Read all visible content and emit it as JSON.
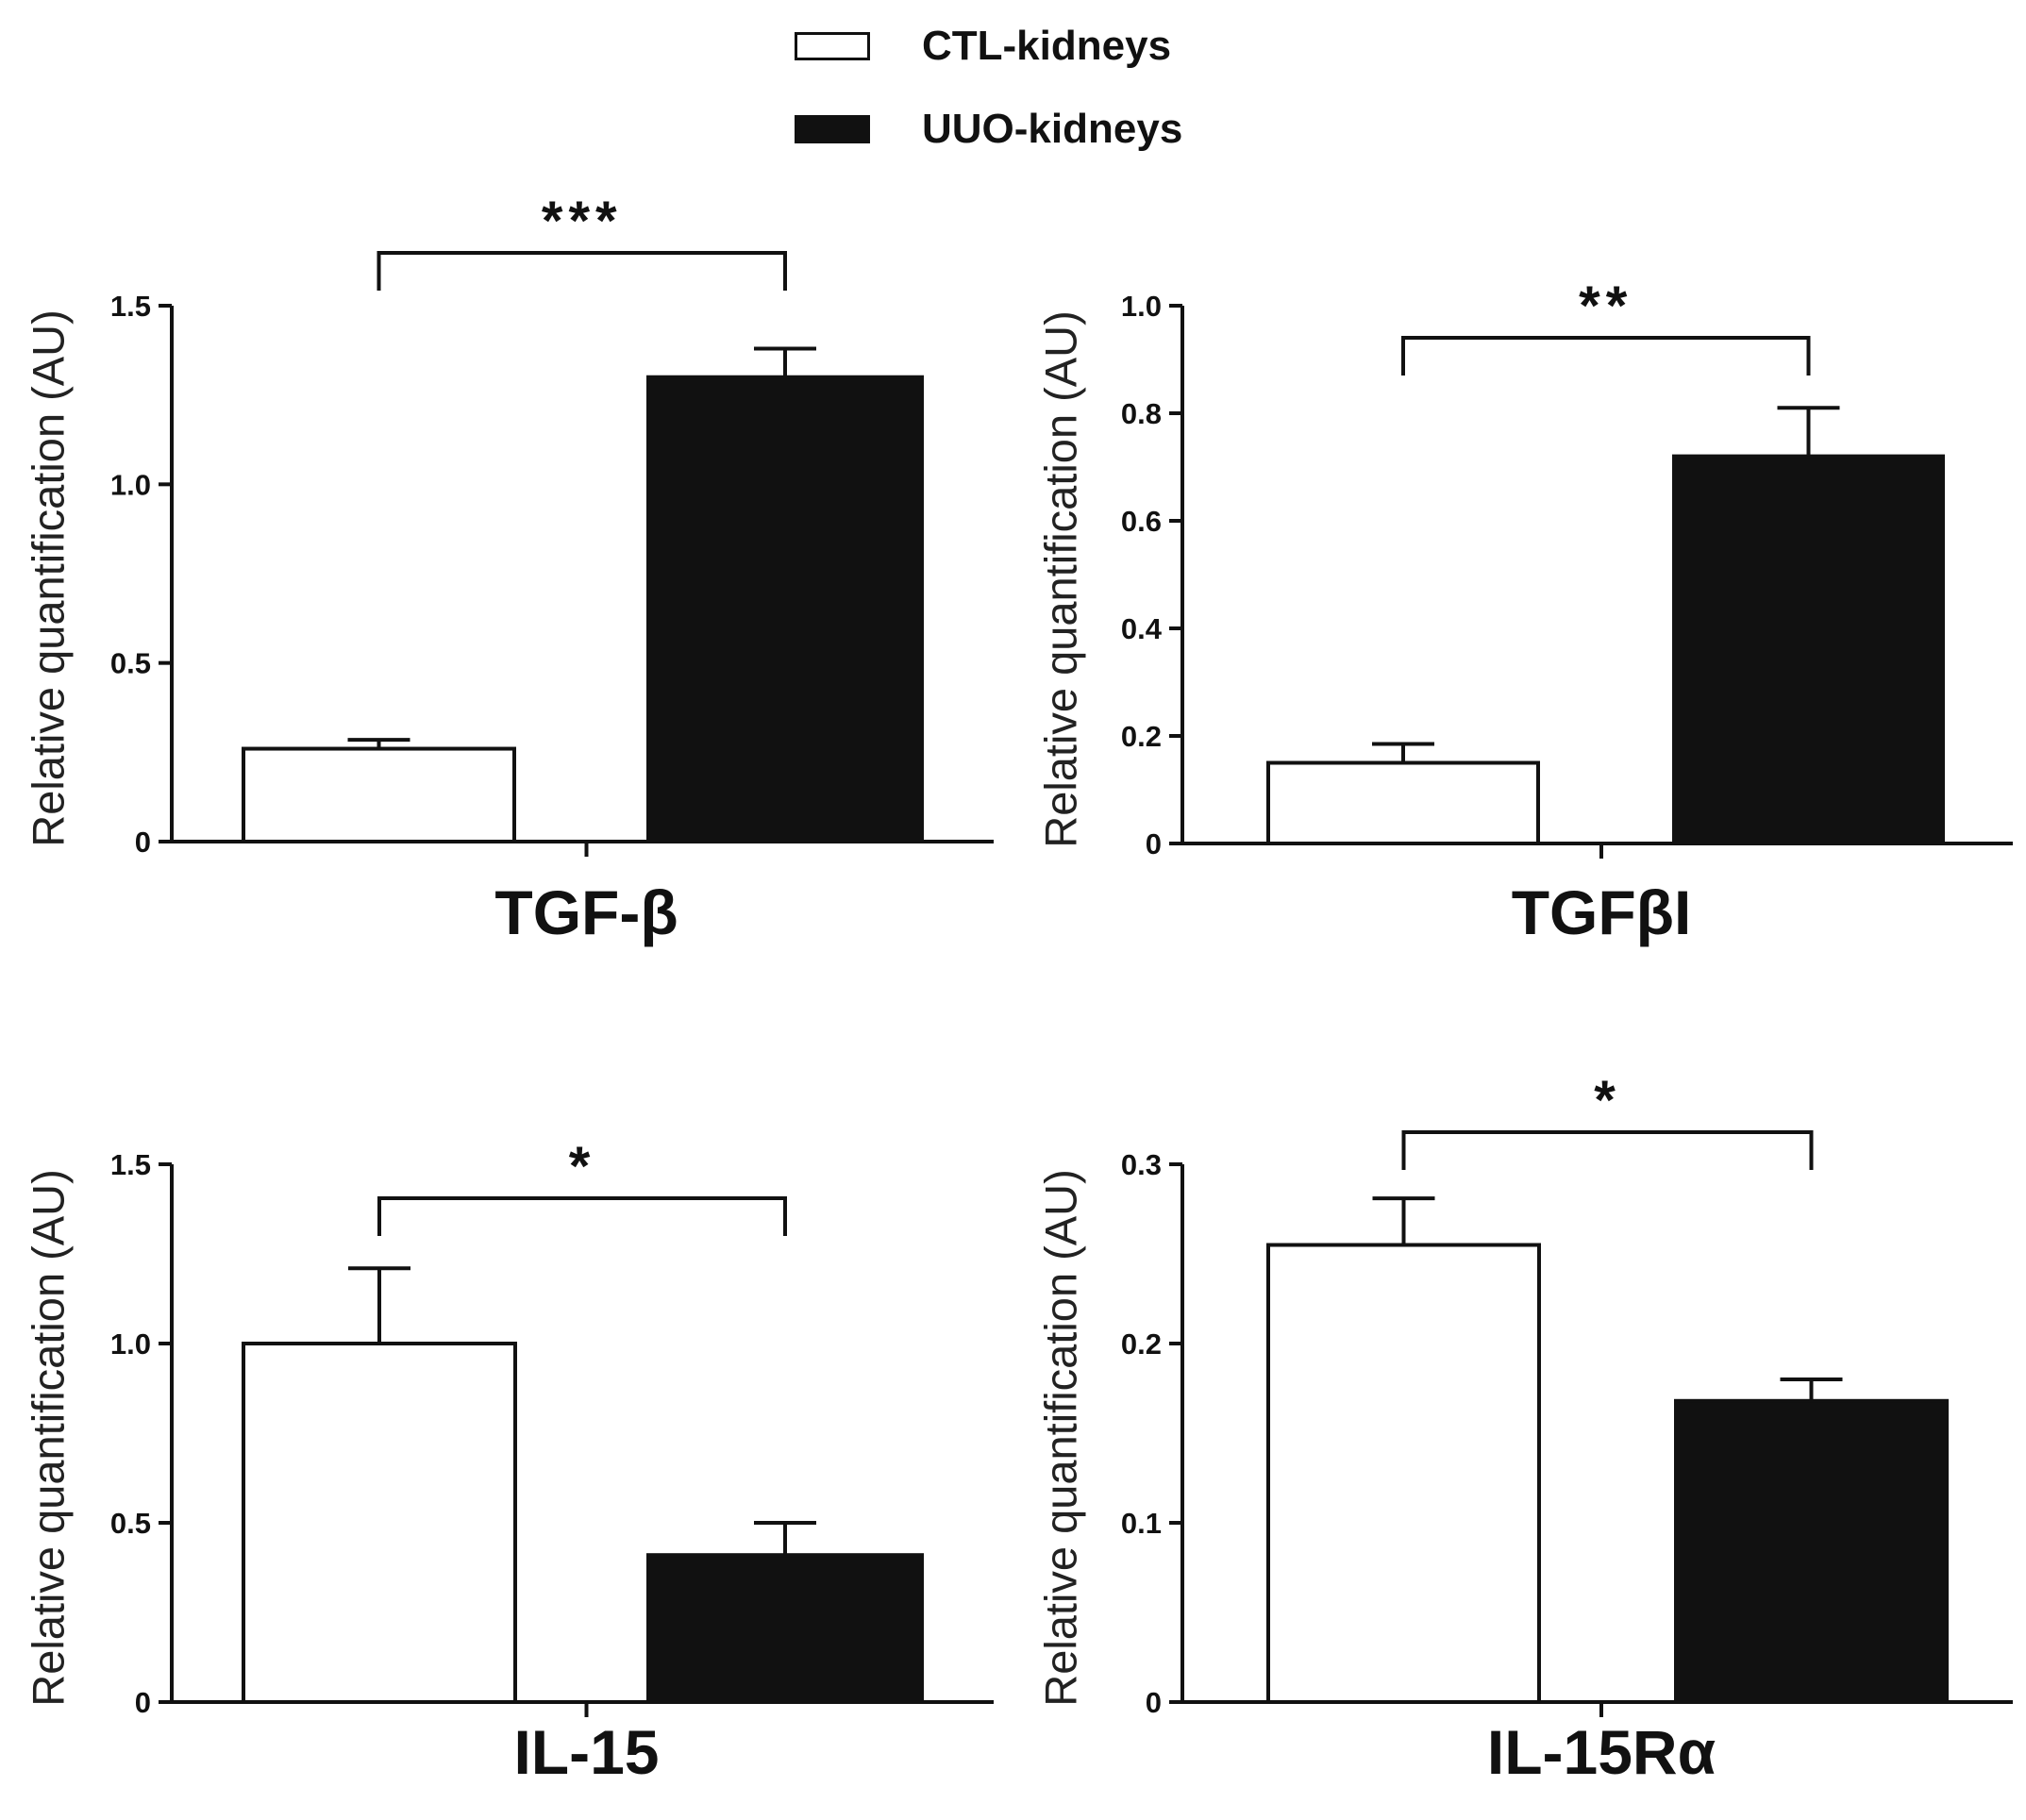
{
  "legend": {
    "items": [
      {
        "label": "CTL-kidneys",
        "color": "#ffffff"
      },
      {
        "label": "UUO-kidneys",
        "color": "#111111"
      }
    ]
  },
  "chart_data": [
    {
      "type": "bar",
      "title": "TGF-β",
      "ylabel": "Relative quantification (AU)",
      "categories": [
        "CTL-kidneys",
        "UUO-kidneys"
      ],
      "values": [
        0.26,
        1.3
      ],
      "errors": [
        0.025,
        0.08
      ],
      "ylim": [
        0,
        1.5
      ],
      "yticks": [
        0,
        0.5,
        1.0,
        1.5
      ],
      "ytick_labels": [
        "0",
        "0.5",
        "1.0",
        "1.5"
      ],
      "significance": "***",
      "colors": [
        "#ffffff",
        "#111111"
      ]
    },
    {
      "type": "bar",
      "title": "TGFβI",
      "ylabel": "Relative quantification (AU)",
      "categories": [
        "CTL-kidneys",
        "UUO-kidneys"
      ],
      "values": [
        0.15,
        0.72
      ],
      "errors": [
        0.035,
        0.09
      ],
      "ylim": [
        0,
        1.0
      ],
      "yticks": [
        0,
        0.2,
        0.4,
        0.6,
        0.8,
        1.0
      ],
      "ytick_labels": [
        "0",
        "0.2",
        "0.4",
        "0.6",
        "0.8",
        "1.0"
      ],
      "significance": "**",
      "colors": [
        "#ffffff",
        "#111111"
      ]
    },
    {
      "type": "bar",
      "title": "IL-15",
      "ylabel": "Relative quantification (AU)",
      "categories": [
        "CTL-kidneys",
        "UUO-kidneys"
      ],
      "values": [
        1.0,
        0.41
      ],
      "errors": [
        0.21,
        0.09
      ],
      "ylim": [
        0,
        1.5
      ],
      "yticks": [
        0,
        0.5,
        1.0,
        1.5
      ],
      "ytick_labels": [
        "0",
        "0.5",
        "1.0",
        "1.5"
      ],
      "significance": "*",
      "colors": [
        "#ffffff",
        "#111111"
      ]
    },
    {
      "type": "bar",
      "title": "IL-15Rα",
      "ylabel": "Relative quantification (AU)",
      "categories": [
        "CTL-kidneys",
        "UUO-kidneys"
      ],
      "values": [
        0.255,
        0.168
      ],
      "errors": [
        0.026,
        0.012
      ],
      "ylim": [
        0,
        0.3
      ],
      "yticks": [
        0,
        0.1,
        0.2,
        0.3
      ],
      "ytick_labels": [
        "0",
        "0.1",
        "0.2",
        "0.3"
      ],
      "significance": "*",
      "colors": [
        "#ffffff",
        "#111111"
      ]
    }
  ]
}
